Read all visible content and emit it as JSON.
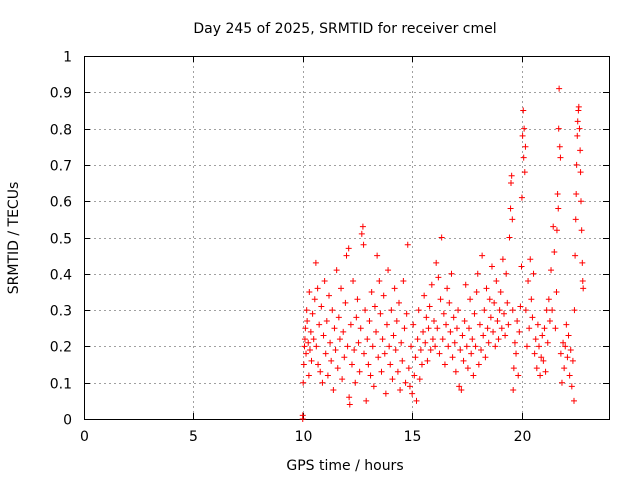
{
  "chart_data": {
    "type": "scatter",
    "title": "Day 245 of 2025, SRMTID for receiver cmel",
    "xlabel": "GPS time / hours",
    "ylabel": "SRMTID / TECUs",
    "xlim": [
      0,
      24
    ],
    "ylim": [
      0,
      1
    ],
    "x_ticks": [
      0,
      5,
      10,
      15,
      20
    ],
    "x_tick_labels": [
      "0",
      "5",
      "10",
      "15",
      "20"
    ],
    "y_ticks": [
      0,
      0.1,
      0.2,
      0.3,
      0.4,
      0.5,
      0.6,
      0.7,
      0.8,
      0.9,
      1
    ],
    "y_tick_labels": [
      "0",
      "0.1",
      "0.2",
      "0.3",
      "0.4",
      "0.5",
      "0.6",
      "0.7",
      "0.8",
      "0.9",
      "1"
    ],
    "grid": true,
    "marker": "+",
    "series": [
      {
        "name": "SRMTID",
        "color": "#ff0000",
        "points": [
          [
            10.0,
            0.0
          ],
          [
            10.0,
            0.01
          ],
          [
            10.02,
            0.1
          ],
          [
            10.05,
            0.15
          ],
          [
            10.08,
            0.2
          ],
          [
            10.1,
            0.22
          ],
          [
            10.12,
            0.25
          ],
          [
            10.15,
            0.18
          ],
          [
            10.18,
            0.3
          ],
          [
            10.2,
            0.27
          ],
          [
            10.25,
            0.21
          ],
          [
            10.28,
            0.12
          ],
          [
            10.3,
            0.35
          ],
          [
            10.33,
            0.19
          ],
          [
            10.37,
            0.24
          ],
          [
            10.4,
            0.16
          ],
          [
            10.45,
            0.29
          ],
          [
            10.5,
            0.22
          ],
          [
            10.55,
            0.33
          ],
          [
            10.6,
            0.43
          ],
          [
            10.62,
            0.2
          ],
          [
            10.68,
            0.36
          ],
          [
            10.7,
            0.15
          ],
          [
            10.75,
            0.26
          ],
          [
            10.8,
            0.13
          ],
          [
            10.85,
            0.31
          ],
          [
            10.9,
            0.1
          ],
          [
            10.95,
            0.23
          ],
          [
            11.0,
            0.38
          ],
          [
            11.05,
            0.18
          ],
          [
            11.1,
            0.27
          ],
          [
            11.15,
            0.12
          ],
          [
            11.2,
            0.34
          ],
          [
            11.25,
            0.21
          ],
          [
            11.3,
            0.16
          ],
          [
            11.35,
            0.3
          ],
          [
            11.4,
            0.08
          ],
          [
            11.45,
            0.25
          ],
          [
            11.5,
            0.19
          ],
          [
            11.55,
            0.41
          ],
          [
            11.6,
            0.14
          ],
          [
            11.65,
            0.28
          ],
          [
            11.7,
            0.22
          ],
          [
            11.75,
            0.36
          ],
          [
            11.8,
            0.11
          ],
          [
            11.85,
            0.24
          ],
          [
            11.9,
            0.17
          ],
          [
            11.95,
            0.32
          ],
          [
            12.0,
            0.45
          ],
          [
            12.05,
            0.2
          ],
          [
            12.1,
            0.47
          ],
          [
            12.12,
            0.06
          ],
          [
            12.15,
            0.04
          ],
          [
            12.2,
            0.26
          ],
          [
            12.25,
            0.15
          ],
          [
            12.3,
            0.38
          ],
          [
            12.35,
            0.19
          ],
          [
            12.4,
            0.1
          ],
          [
            12.45,
            0.28
          ],
          [
            12.5,
            0.33
          ],
          [
            12.55,
            0.21
          ],
          [
            12.6,
            0.13
          ],
          [
            12.65,
            0.25
          ],
          [
            12.7,
            0.51
          ],
          [
            12.75,
            0.53
          ],
          [
            12.78,
            0.48
          ],
          [
            12.8,
            0.18
          ],
          [
            12.85,
            0.3
          ],
          [
            12.9,
            0.05
          ],
          [
            12.95,
            0.22
          ],
          [
            13.0,
            0.15
          ],
          [
            13.05,
            0.27
          ],
          [
            13.1,
            0.12
          ],
          [
            13.15,
            0.35
          ],
          [
            13.2,
            0.2
          ],
          [
            13.25,
            0.09
          ],
          [
            13.3,
            0.31
          ],
          [
            13.35,
            0.24
          ],
          [
            13.4,
            0.45
          ],
          [
            13.45,
            0.17
          ],
          [
            13.5,
            0.38
          ],
          [
            13.55,
            0.29
          ],
          [
            13.6,
            0.13
          ],
          [
            13.65,
            0.22
          ],
          [
            13.7,
            0.34
          ],
          [
            13.75,
            0.18
          ],
          [
            13.8,
            0.07
          ],
          [
            13.85,
            0.26
          ],
          [
            13.9,
            0.41
          ],
          [
            13.95,
            0.2
          ],
          [
            14.0,
            0.15
          ],
          [
            14.05,
            0.3
          ],
          [
            14.1,
            0.11
          ],
          [
            14.15,
            0.23
          ],
          [
            14.2,
            0.36
          ],
          [
            14.25,
            0.19
          ],
          [
            14.3,
            0.27
          ],
          [
            14.35,
            0.13
          ],
          [
            14.4,
            0.32
          ],
          [
            14.45,
            0.08
          ],
          [
            14.5,
            0.21
          ],
          [
            14.55,
            0.16
          ],
          [
            14.6,
            0.38
          ],
          [
            14.65,
            0.25
          ],
          [
            14.7,
            0.1
          ],
          [
            14.75,
            0.29
          ],
          [
            14.8,
            0.48
          ],
          [
            14.85,
            0.14
          ],
          [
            14.9,
            0.09
          ],
          [
            14.95,
            0.2
          ],
          [
            15.0,
            0.07
          ],
          [
            15.05,
            0.26
          ],
          [
            15.1,
            0.12
          ],
          [
            15.15,
            0.17
          ],
          [
            15.2,
            0.05
          ],
          [
            15.25,
            0.22
          ],
          [
            15.3,
            0.3
          ],
          [
            15.35,
            0.11
          ],
          [
            15.4,
            0.19
          ],
          [
            15.45,
            0.15
          ],
          [
            15.5,
            0.24
          ],
          [
            15.55,
            0.34
          ],
          [
            15.6,
            0.21
          ],
          [
            15.65,
            0.28
          ],
          [
            15.7,
            0.16
          ],
          [
            15.75,
            0.25
          ],
          [
            15.8,
            0.31
          ],
          [
            15.85,
            0.19
          ],
          [
            15.9,
            0.37
          ],
          [
            15.95,
            0.22
          ],
          [
            16.0,
            0.27
          ],
          [
            16.05,
            0.2
          ],
          [
            16.1,
            0.43
          ],
          [
            16.15,
            0.25
          ],
          [
            16.2,
            0.39
          ],
          [
            16.25,
            0.18
          ],
          [
            16.3,
            0.33
          ],
          [
            16.35,
            0.5
          ],
          [
            16.4,
            0.22
          ],
          [
            16.45,
            0.29
          ],
          [
            16.5,
            0.15
          ],
          [
            16.55,
            0.26
          ],
          [
            16.6,
            0.36
          ],
          [
            16.65,
            0.2
          ],
          [
            16.7,
            0.32
          ],
          [
            16.75,
            0.24
          ],
          [
            16.8,
            0.4
          ],
          [
            16.85,
            0.17
          ],
          [
            16.9,
            0.28
          ],
          [
            16.95,
            0.21
          ],
          [
            17.0,
            0.13
          ],
          [
            17.05,
            0.25
          ],
          [
            17.1,
            0.3
          ],
          [
            17.15,
            0.09
          ],
          [
            17.2,
            0.19
          ],
          [
            17.25,
            0.08
          ],
          [
            17.3,
            0.23
          ],
          [
            17.35,
            0.16
          ],
          [
            17.4,
            0.27
          ],
          [
            17.45,
            0.37
          ],
          [
            17.5,
            0.2
          ],
          [
            17.55,
            0.14
          ],
          [
            17.6,
            0.25
          ],
          [
            17.65,
            0.33
          ],
          [
            17.7,
            0.18
          ],
          [
            17.75,
            0.22
          ],
          [
            17.8,
            0.12
          ],
          [
            17.85,
            0.29
          ],
          [
            17.9,
            0.2
          ],
          [
            17.95,
            0.35
          ],
          [
            18.0,
            0.4
          ],
          [
            18.05,
            0.15
          ],
          [
            18.1,
            0.26
          ],
          [
            18.15,
            0.19
          ],
          [
            18.2,
            0.45
          ],
          [
            18.25,
            0.23
          ],
          [
            18.3,
            0.3
          ],
          [
            18.35,
            0.17
          ],
          [
            18.4,
            0.36
          ],
          [
            18.45,
            0.25
          ],
          [
            18.5,
            0.21
          ],
          [
            18.55,
            0.33
          ],
          [
            18.6,
            0.28
          ],
          [
            18.65,
            0.42
          ],
          [
            18.7,
            0.24
          ],
          [
            18.75,
            0.32
          ],
          [
            18.8,
            0.2
          ],
          [
            18.85,
            0.38
          ],
          [
            18.9,
            0.27
          ],
          [
            18.95,
            0.22
          ],
          [
            19.0,
            0.3
          ],
          [
            19.05,
            0.35
          ],
          [
            19.1,
            0.25
          ],
          [
            19.15,
            0.44
          ],
          [
            19.2,
            0.29
          ],
          [
            19.25,
            0.23
          ],
          [
            19.3,
            0.4
          ],
          [
            19.35,
            0.32
          ],
          [
            19.4,
            0.26
          ],
          [
            19.45,
            0.5
          ],
          [
            19.5,
            0.58
          ],
          [
            19.52,
            0.65
          ],
          [
            19.55,
            0.67
          ],
          [
            19.58,
            0.55
          ],
          [
            19.6,
            0.3
          ],
          [
            19.62,
            0.08
          ],
          [
            19.65,
            0.14
          ],
          [
            19.7,
            0.21
          ],
          [
            19.75,
            0.18
          ],
          [
            19.8,
            0.27
          ],
          [
            19.85,
            0.12
          ],
          [
            19.9,
            0.24
          ],
          [
            19.95,
            0.31
          ],
          [
            20.0,
            0.42
          ],
          [
            20.02,
            0.61
          ],
          [
            20.05,
            0.78
          ],
          [
            20.08,
            0.85
          ],
          [
            20.1,
            0.72
          ],
          [
            20.12,
            0.8
          ],
          [
            20.15,
            0.68
          ],
          [
            20.18,
            0.75
          ],
          [
            20.2,
            0.3
          ],
          [
            20.25,
            0.2
          ],
          [
            20.3,
            0.38
          ],
          [
            20.35,
            0.25
          ],
          [
            20.4,
            0.44
          ],
          [
            20.45,
            0.33
          ],
          [
            20.5,
            0.28
          ],
          [
            20.55,
            0.4
          ],
          [
            20.6,
            0.18
          ],
          [
            20.65,
            0.22
          ],
          [
            20.7,
            0.14
          ],
          [
            20.75,
            0.26
          ],
          [
            20.8,
            0.2
          ],
          [
            20.85,
            0.12
          ],
          [
            20.9,
            0.17
          ],
          [
            20.95,
            0.23
          ],
          [
            21.0,
            0.16
          ],
          [
            21.05,
            0.25
          ],
          [
            21.1,
            0.13
          ],
          [
            21.15,
            0.3
          ],
          [
            21.2,
            0.21
          ],
          [
            21.25,
            0.33
          ],
          [
            21.3,
            0.27
          ],
          [
            21.35,
            0.41
          ],
          [
            21.4,
            0.3
          ],
          [
            21.45,
            0.53
          ],
          [
            21.5,
            0.46
          ],
          [
            21.55,
            0.25
          ],
          [
            21.6,
            0.35
          ],
          [
            21.62,
            0.52
          ],
          [
            21.65,
            0.62
          ],
          [
            21.68,
            0.58
          ],
          [
            21.7,
            0.8
          ],
          [
            21.72,
            0.91
          ],
          [
            21.75,
            0.75
          ],
          [
            21.78,
            0.72
          ],
          [
            21.8,
            0.18
          ],
          [
            21.85,
            0.1
          ],
          [
            21.9,
            0.21
          ],
          [
            21.95,
            0.14
          ],
          [
            22.0,
            0.2
          ],
          [
            22.05,
            0.26
          ],
          [
            22.1,
            0.17
          ],
          [
            22.15,
            0.23
          ],
          [
            22.2,
            0.12
          ],
          [
            22.25,
            0.19
          ],
          [
            22.3,
            0.09
          ],
          [
            22.35,
            0.16
          ],
          [
            22.4,
            0.05
          ],
          [
            22.42,
            0.3
          ],
          [
            22.45,
            0.45
          ],
          [
            22.48,
            0.55
          ],
          [
            22.5,
            0.62
          ],
          [
            22.52,
            0.7
          ],
          [
            22.55,
            0.78
          ],
          [
            22.57,
            0.82
          ],
          [
            22.6,
            0.85
          ],
          [
            22.62,
            0.86
          ],
          [
            22.65,
            0.8
          ],
          [
            22.68,
            0.74
          ],
          [
            22.7,
            0.68
          ],
          [
            22.72,
            0.6
          ],
          [
            22.75,
            0.52
          ],
          [
            22.78,
            0.43
          ],
          [
            22.8,
            0.38
          ],
          [
            22.82,
            0.36
          ]
        ]
      }
    ]
  }
}
